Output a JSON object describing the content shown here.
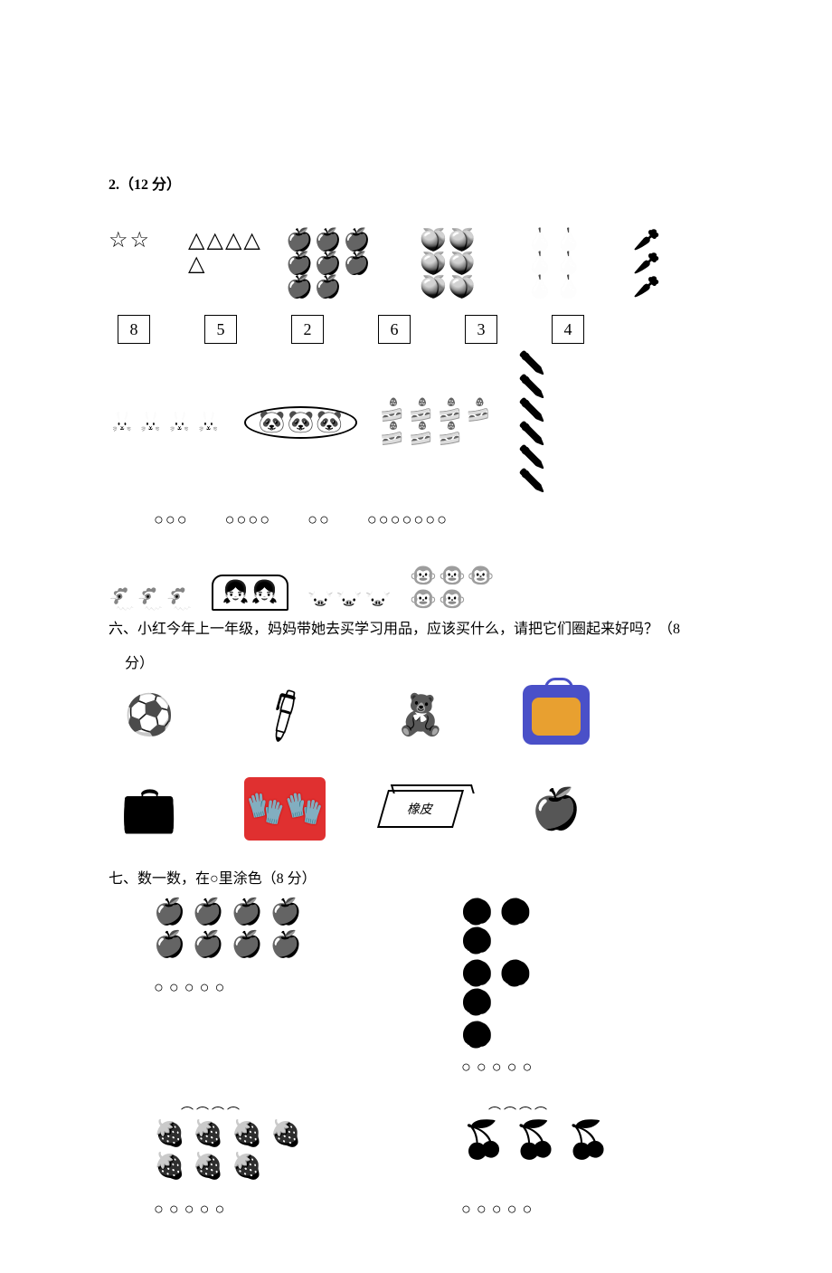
{
  "q2": {
    "label": "2.（12 分）",
    "row1": {
      "stars": {
        "glyph": "☆",
        "count": 2
      },
      "triangles": {
        "glyph": "△",
        "count": 5,
        "cols": 3
      },
      "apples": {
        "glyph": "🍎",
        "count": 8,
        "cols": 4,
        "mono": true
      },
      "peaches": {
        "glyph": "🍑",
        "count": 6,
        "cols": 3,
        "mono": true
      },
      "pears": {
        "glyph": "🍐",
        "count": 6,
        "cols": 3,
        "mono": true
      },
      "radishes": {
        "glyph": "🥕",
        "count": 3,
        "mono": true
      }
    },
    "boxes": [
      "8",
      "5",
      "2",
      "6",
      "3",
      "4"
    ],
    "row2": {
      "rabbits": {
        "glyph": "🐰",
        "count": 4
      },
      "pandas": {
        "glyph": "🐼",
        "count": 3,
        "circled": true
      },
      "cakes": {
        "glyph": "🍰",
        "count": 7,
        "cols": 4
      },
      "pencils": {
        "glyph": "✏️",
        "count": 6,
        "cols": 2
      }
    },
    "orow": [
      "○○○",
      "○○○○",
      "○○",
      "○○○○○○○"
    ],
    "row4": {
      "chickens": {
        "glyph": "🐔",
        "count": 3
      },
      "kids": {
        "glyph": "👧",
        "count": 2
      },
      "pigs": {
        "glyph": "🐷",
        "count": 3
      },
      "monkeys": {
        "glyph": "🐵",
        "count": 5,
        "cols": 3
      }
    }
  },
  "q6": {
    "label": "六、小红今年上一年级，妈妈带她去买学习用品，应该买什么，请把它们圈起来好吗？（8",
    "label_cont": "分）",
    "items": [
      {
        "name": "soccer-ball",
        "glyph": "⚽"
      },
      {
        "name": "pen",
        "glyph": "🖊"
      },
      {
        "name": "teddy-bear",
        "glyph": "🧸"
      },
      {
        "name": "backpack",
        "glyph": ""
      },
      {
        "name": "pencil-case",
        "glyph": "💼"
      },
      {
        "name": "gloves",
        "glyph": ""
      },
      {
        "name": "eraser",
        "glyph": "橡皮"
      },
      {
        "name": "apple",
        "glyph": "🍎"
      }
    ]
  },
  "q7": {
    "label": "七、数一数，在○里涂色（8 分）",
    "cells": [
      {
        "name": "apples",
        "glyph": "🍎",
        "count": 8,
        "cols": 4,
        "circles": "○○○○○"
      },
      {
        "name": "cookies",
        "glyph": "🍪",
        "count": 7,
        "cols": 3,
        "circles": "○○○○○"
      },
      {
        "name": "strawberries",
        "glyph": "🍓",
        "count": 7,
        "cols": 4,
        "circles": "○○○○○",
        "top_arcs": "⌒⌒⌒⌒"
      },
      {
        "name": "cherries",
        "glyph": "🍒",
        "count": 3,
        "cols": 3,
        "circles": "○○○○○",
        "top_arcs": "⌒⌒⌒⌒"
      }
    ]
  },
  "style": {
    "text_color": "#000000",
    "bg_color": "#ffffff",
    "accent_blue": "#4a50c8",
    "accent_orange": "#e8a030",
    "accent_red": "#e03030"
  }
}
